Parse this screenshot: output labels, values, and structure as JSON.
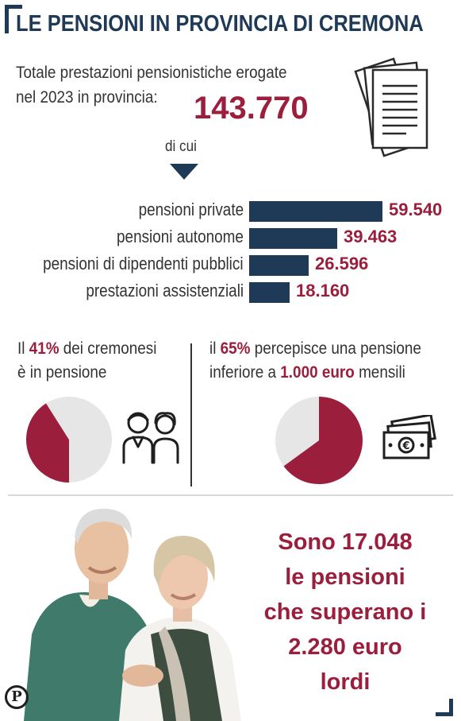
{
  "header": {
    "title": "LE PENSIONI IN PROVINCIA DI CREMONA"
  },
  "intro": {
    "line1": "Totale prestazioni pensionistiche erogate",
    "line2": "nel 2023 in provincia:",
    "total": "143.770",
    "subtitle": "di cui"
  },
  "colors": {
    "navy": "#1f3a57",
    "crimson": "#9b1e3c",
    "pie_rest": "#e6e6e6"
  },
  "icons": {
    "documents": "documents-icon",
    "retirees": "elderly-couple-icon",
    "money": "banknote-euro-icon",
    "logo": "p-logo-icon"
  },
  "chart_data": [
    {
      "type": "bar",
      "orientation": "horizontal",
      "categories": [
        "pensioni private",
        "pensioni autonome",
        "pensioni di dipendenti pubblici",
        "prestazioni assistenziali"
      ],
      "values": [
        59540,
        39463,
        26596,
        18160
      ],
      "value_labels": [
        "59.540",
        "39.463",
        "26.596",
        "18.160"
      ]
    },
    {
      "type": "pie",
      "labels": [
        "in pensione",
        "altri"
      ],
      "values": [
        41,
        59
      ]
    },
    {
      "type": "pie",
      "labels": [
        "inferiore a 1.000 euro",
        "altri"
      ],
      "values": [
        65,
        35
      ]
    }
  ],
  "stat_left": {
    "p1": "Il ",
    "pct": "41%",
    "p2": " dei cremonesi",
    "line2": "è in pensione"
  },
  "stat_right": {
    "p1": "il ",
    "pct": "65%",
    "p2": " percepisce una pensione",
    "p3": "inferiore a ",
    "amount": "1.000 euro",
    "p4": " mensili"
  },
  "callout": {
    "line1": "Sono 17.048",
    "line2": "le pensioni",
    "line3": "che superano i",
    "line4": "2.280 euro",
    "line5": "lordi"
  },
  "logo_letter": "P"
}
